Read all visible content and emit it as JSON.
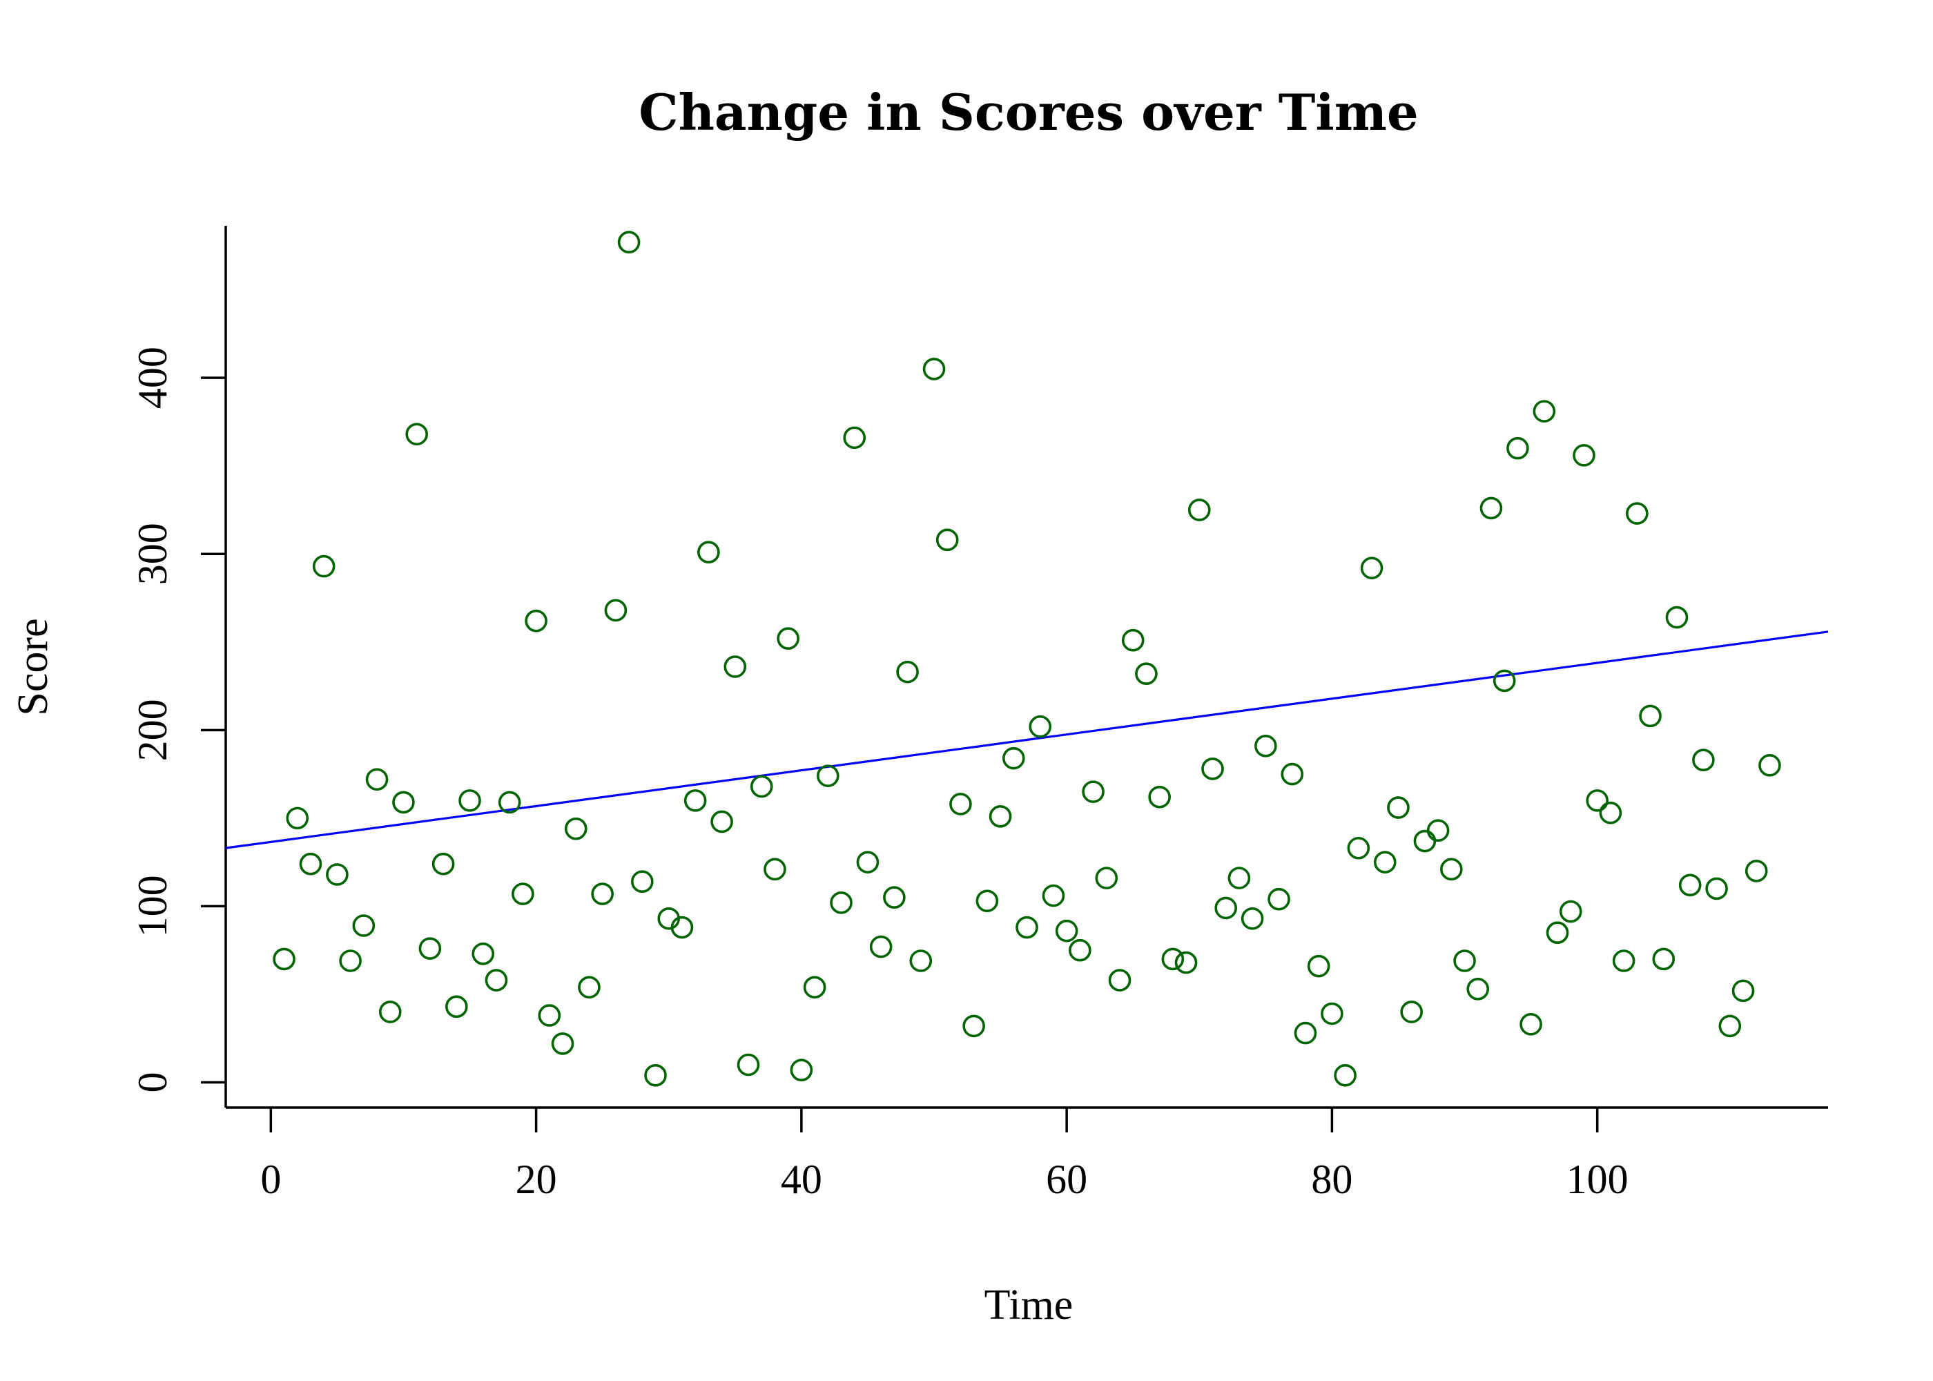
{
  "chart_data": {
    "type": "scatter",
    "title": "Change in Scores over Time",
    "xlabel": "Time",
    "ylabel": "Score",
    "xlim": [
      -3.4,
      117.4
    ],
    "ylim": [
      -14.3,
      486.3
    ],
    "xticks": [
      0,
      20,
      40,
      60,
      80,
      100
    ],
    "yticks": [
      0,
      100,
      200,
      300,
      400
    ],
    "grid": false,
    "point_color": "#006400",
    "line_color": "#0000ff",
    "x": [
      1,
      2,
      3,
      4,
      5,
      6,
      7,
      8,
      9,
      10,
      11,
      12,
      13,
      14,
      15,
      16,
      17,
      18,
      19,
      20,
      21,
      22,
      23,
      24,
      25,
      26,
      27,
      28,
      29,
      30,
      31,
      32,
      33,
      34,
      35,
      36,
      37,
      38,
      39,
      40,
      41,
      42,
      43,
      44,
      45,
      46,
      47,
      48,
      49,
      50,
      51,
      52,
      53,
      54,
      55,
      56,
      57,
      58,
      59,
      60,
      61,
      62,
      63,
      64,
      65,
      66,
      67,
      68,
      69,
      70,
      71,
      72,
      73,
      74,
      75,
      76,
      77,
      78,
      79,
      80,
      81,
      82,
      83,
      84,
      85,
      86,
      87,
      88,
      89,
      90,
      91,
      92,
      93,
      94,
      95,
      96,
      97,
      98,
      99,
      100,
      101,
      102,
      103,
      104,
      105,
      106,
      107,
      108,
      109,
      110,
      111,
      112,
      113
    ],
    "y": [
      70,
      150,
      124,
      293,
      118,
      69,
      89,
      172,
      40,
      159,
      368,
      76,
      124,
      43,
      160,
      73,
      58,
      159,
      107,
      262,
      38,
      22,
      144,
      54,
      107,
      268,
      477,
      114,
      4,
      93,
      88,
      160,
      301,
      148,
      236,
      10,
      168,
      121,
      252,
      7,
      54,
      174,
      102,
      366,
      125,
      77,
      105,
      233,
      69,
      405,
      308,
      158,
      32,
      103,
      151,
      184,
      88,
      202,
      106,
      86,
      75,
      165,
      116,
      58,
      251,
      232,
      162,
      70,
      68,
      325,
      178,
      99,
      116,
      93,
      191,
      104,
      175,
      28,
      66,
      39,
      4,
      133,
      292,
      125,
      156,
      40,
      137,
      143,
      121,
      69,
      53,
      326,
      228,
      360,
      33,
      381,
      85,
      97,
      356,
      160,
      153,
      69,
      323,
      208,
      70,
      264,
      112,
      183,
      110,
      32,
      52,
      120,
      180
    ],
    "regression": {
      "intercept": 136.5,
      "slope": 1.0167
    }
  }
}
